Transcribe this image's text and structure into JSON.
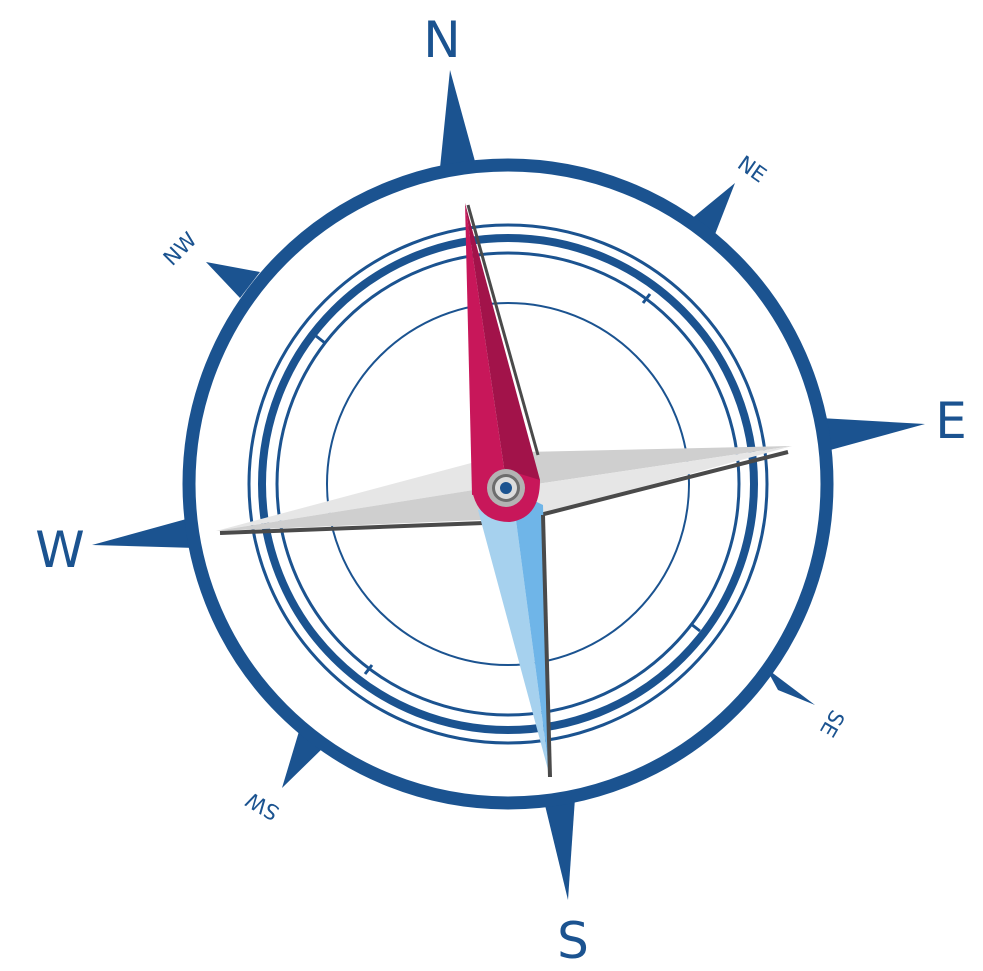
{
  "directions": {
    "north": "N",
    "east": "E",
    "south": "S",
    "west": "W",
    "northeast": "NE",
    "southeast": "SE",
    "southwest": "SW",
    "northwest": "NW"
  },
  "colors": {
    "rose_blue": "#1b5390",
    "needle_north": "#c8175a",
    "needle_north_shadow": "#a2134a",
    "needle_south_light": "#a6d1ee",
    "needle_south": "#6fb5e8",
    "bar_light": "#e6e6e6",
    "bar_shade": "#cfcfcf",
    "bar_edge": "#4a4a4a"
  }
}
